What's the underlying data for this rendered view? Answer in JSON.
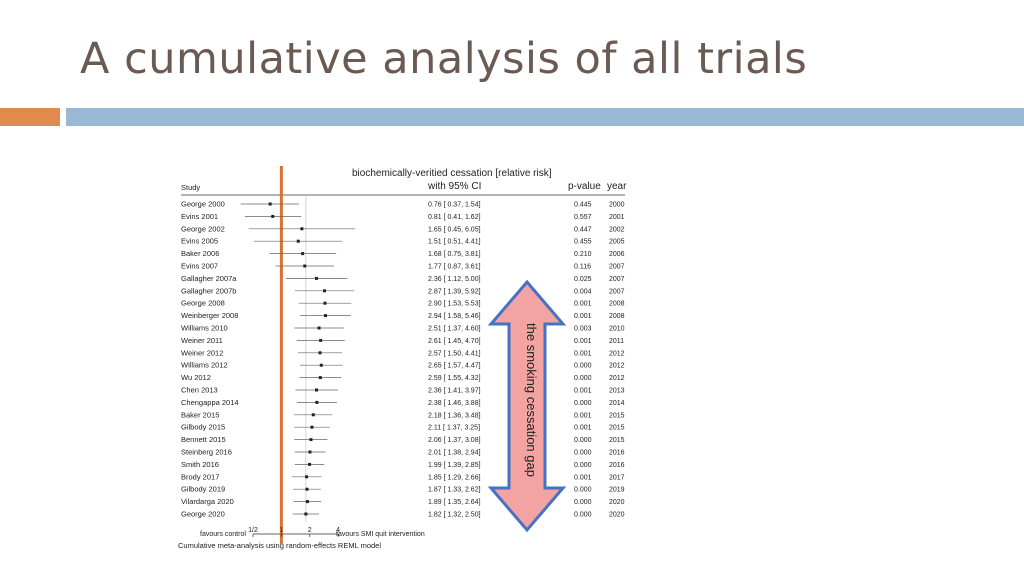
{
  "slide": {
    "title": "A cumulative analysis of all trials",
    "colors": {
      "title": "#6b5a52",
      "accent_orange": "#e08a4e",
      "accent_blue": "#98b8d6"
    }
  },
  "chart_data": {
    "type": "forest",
    "title": "biochemically-veritied cessation [relative risk]",
    "subtitle": "with 95% CI",
    "headers": {
      "study": "Study",
      "pvalue": "p-value",
      "year": "year"
    },
    "x_scale": "log",
    "x_ticks": [
      {
        "value": 0.5,
        "label": "1/2"
      },
      {
        "value": 1,
        "label": "1"
      },
      {
        "value": 2,
        "label": "2"
      },
      {
        "value": 4,
        "label": "4"
      }
    ],
    "xlim": [
      0.33,
      6.5
    ],
    "favours_left": "favours control",
    "favours_right": "favours SMI quit intervention",
    "caption": "Cumulative meta-analysis using random-effects REML model",
    "highlight_line": {
      "at": 1,
      "color": "#d9742f"
    },
    "annotation": {
      "text": "the smoking cessation gap",
      "arrow_color": "#f4a3a3",
      "arrow_stroke": "#4472c4"
    },
    "rows": [
      {
        "study": "George 2000",
        "rr": 0.76,
        "lo": 0.37,
        "hi": 1.54,
        "ci_text": "0.76 [ 0.37,  1.54]",
        "p": "0.445",
        "year": "2000"
      },
      {
        "study": "Evins 2001",
        "rr": 0.81,
        "lo": 0.41,
        "hi": 1.62,
        "ci_text": "0.81 [ 0.41,  1.62]",
        "p": "0.557",
        "year": "2001"
      },
      {
        "study": "George 2002",
        "rr": 1.65,
        "lo": 0.45,
        "hi": 6.05,
        "ci_text": "1.65 [ 0.45,  6.05]",
        "p": "0.447",
        "year": "2002"
      },
      {
        "study": "Evins 2005",
        "rr": 1.51,
        "lo": 0.51,
        "hi": 4.41,
        "ci_text": "1.51 [ 0.51,  4.41]",
        "p": "0.455",
        "year": "2005"
      },
      {
        "study": "Baker 2006",
        "rr": 1.68,
        "lo": 0.75,
        "hi": 3.81,
        "ci_text": "1.68 [ 0.75,  3.81]",
        "p": "0.210",
        "year": "2006"
      },
      {
        "study": "Evins 2007",
        "rr": 1.77,
        "lo": 0.87,
        "hi": 3.61,
        "ci_text": "1.77 [ 0.87,  3.61]",
        "p": "0.116",
        "year": "2007"
      },
      {
        "study": "Gallagher 2007a",
        "rr": 2.36,
        "lo": 1.12,
        "hi": 5.0,
        "ci_text": "2.36 [ 1.12,  5.00]",
        "p": "0.025",
        "year": "2007"
      },
      {
        "study": "Gallagher 2007b",
        "rr": 2.87,
        "lo": 1.39,
        "hi": 5.92,
        "ci_text": "2.87 [ 1.39,  5.92]",
        "p": "0.004",
        "year": "2007"
      },
      {
        "study": "George 2008",
        "rr": 2.9,
        "lo": 1.53,
        "hi": 5.53,
        "ci_text": "2.90 [ 1.53,  5.53]",
        "p": "0.001",
        "year": "2008"
      },
      {
        "study": "Weinberger 2008",
        "rr": 2.94,
        "lo": 1.58,
        "hi": 5.46,
        "ci_text": "2.94 [ 1.58,  5.46]",
        "p": "0.001",
        "year": "2008"
      },
      {
        "study": "Williams 2010",
        "rr": 2.51,
        "lo": 1.37,
        "hi": 4.6,
        "ci_text": "2.51 [ 1.37,  4.60]",
        "p": "0.003",
        "year": "2010"
      },
      {
        "study": "Weiner 2011",
        "rr": 2.61,
        "lo": 1.45,
        "hi": 4.7,
        "ci_text": "2.61 [ 1.45,  4.70]",
        "p": "0.001",
        "year": "2011"
      },
      {
        "study": "Weiner 2012",
        "rr": 2.57,
        "lo": 1.5,
        "hi": 4.41,
        "ci_text": "2.57 [ 1.50,  4.41]",
        "p": "0.001",
        "year": "2012"
      },
      {
        "study": "Williams 2012",
        "rr": 2.65,
        "lo": 1.57,
        "hi": 4.47,
        "ci_text": "2.65 [ 1.57,  4.47]",
        "p": "0.000",
        "year": "2012"
      },
      {
        "study": "Wu 2012",
        "rr": 2.59,
        "lo": 1.55,
        "hi": 4.32,
        "ci_text": "2.59 [ 1.55,  4.32]",
        "p": "0.000",
        "year": "2012"
      },
      {
        "study": "Chen 2013",
        "rr": 2.36,
        "lo": 1.41,
        "hi": 3.97,
        "ci_text": "2.36 [ 1.41,  3.97]",
        "p": "0.001",
        "year": "2013"
      },
      {
        "study": "Chengappa 2014",
        "rr": 2.38,
        "lo": 1.46,
        "hi": 3.88,
        "ci_text": "2.38 [ 1.46,  3.88]",
        "p": "0.000",
        "year": "2014"
      },
      {
        "study": "Baker 2015",
        "rr": 2.18,
        "lo": 1.36,
        "hi": 3.48,
        "ci_text": "2.18 [ 1.36,  3.48]",
        "p": "0.001",
        "year": "2015"
      },
      {
        "study": "Gilbody 2015",
        "rr": 2.11,
        "lo": 1.37,
        "hi": 3.25,
        "ci_text": "2.11 [ 1.37,  3.25]",
        "p": "0.001",
        "year": "2015"
      },
      {
        "study": "Bennett 2015",
        "rr": 2.06,
        "lo": 1.37,
        "hi": 3.08,
        "ci_text": "2.06 [ 1.37,  3.08]",
        "p": "0.000",
        "year": "2015"
      },
      {
        "study": "Steinberg 2016",
        "rr": 2.01,
        "lo": 1.38,
        "hi": 2.94,
        "ci_text": "2.01 [ 1.38,  2.94]",
        "p": "0.000",
        "year": "2016"
      },
      {
        "study": "Smith 2016",
        "rr": 1.99,
        "lo": 1.39,
        "hi": 2.85,
        "ci_text": "1.99 [ 1.39,  2.85]",
        "p": "0.000",
        "year": "2016"
      },
      {
        "study": "Brody 2017",
        "rr": 1.85,
        "lo": 1.29,
        "hi": 2.66,
        "ci_text": "1.85 [ 1.29,  2.66]",
        "p": "0.001",
        "year": "2017"
      },
      {
        "study": "Gilbody 2019",
        "rr": 1.87,
        "lo": 1.33,
        "hi": 2.62,
        "ci_text": "1.87 [ 1.33,  2.62]",
        "p": "0.000",
        "year": "2019"
      },
      {
        "study": "Vilardarga 2020",
        "rr": 1.89,
        "lo": 1.35,
        "hi": 2.64,
        "ci_text": "1.89 [ 1.35,  2.64]",
        "p": "0.000",
        "year": "2020"
      },
      {
        "study": "George 2020",
        "rr": 1.82,
        "lo": 1.32,
        "hi": 2.5,
        "ci_text": "1.82 [ 1.32,  2.50]",
        "p": "0.000",
        "year": "2020"
      }
    ]
  }
}
